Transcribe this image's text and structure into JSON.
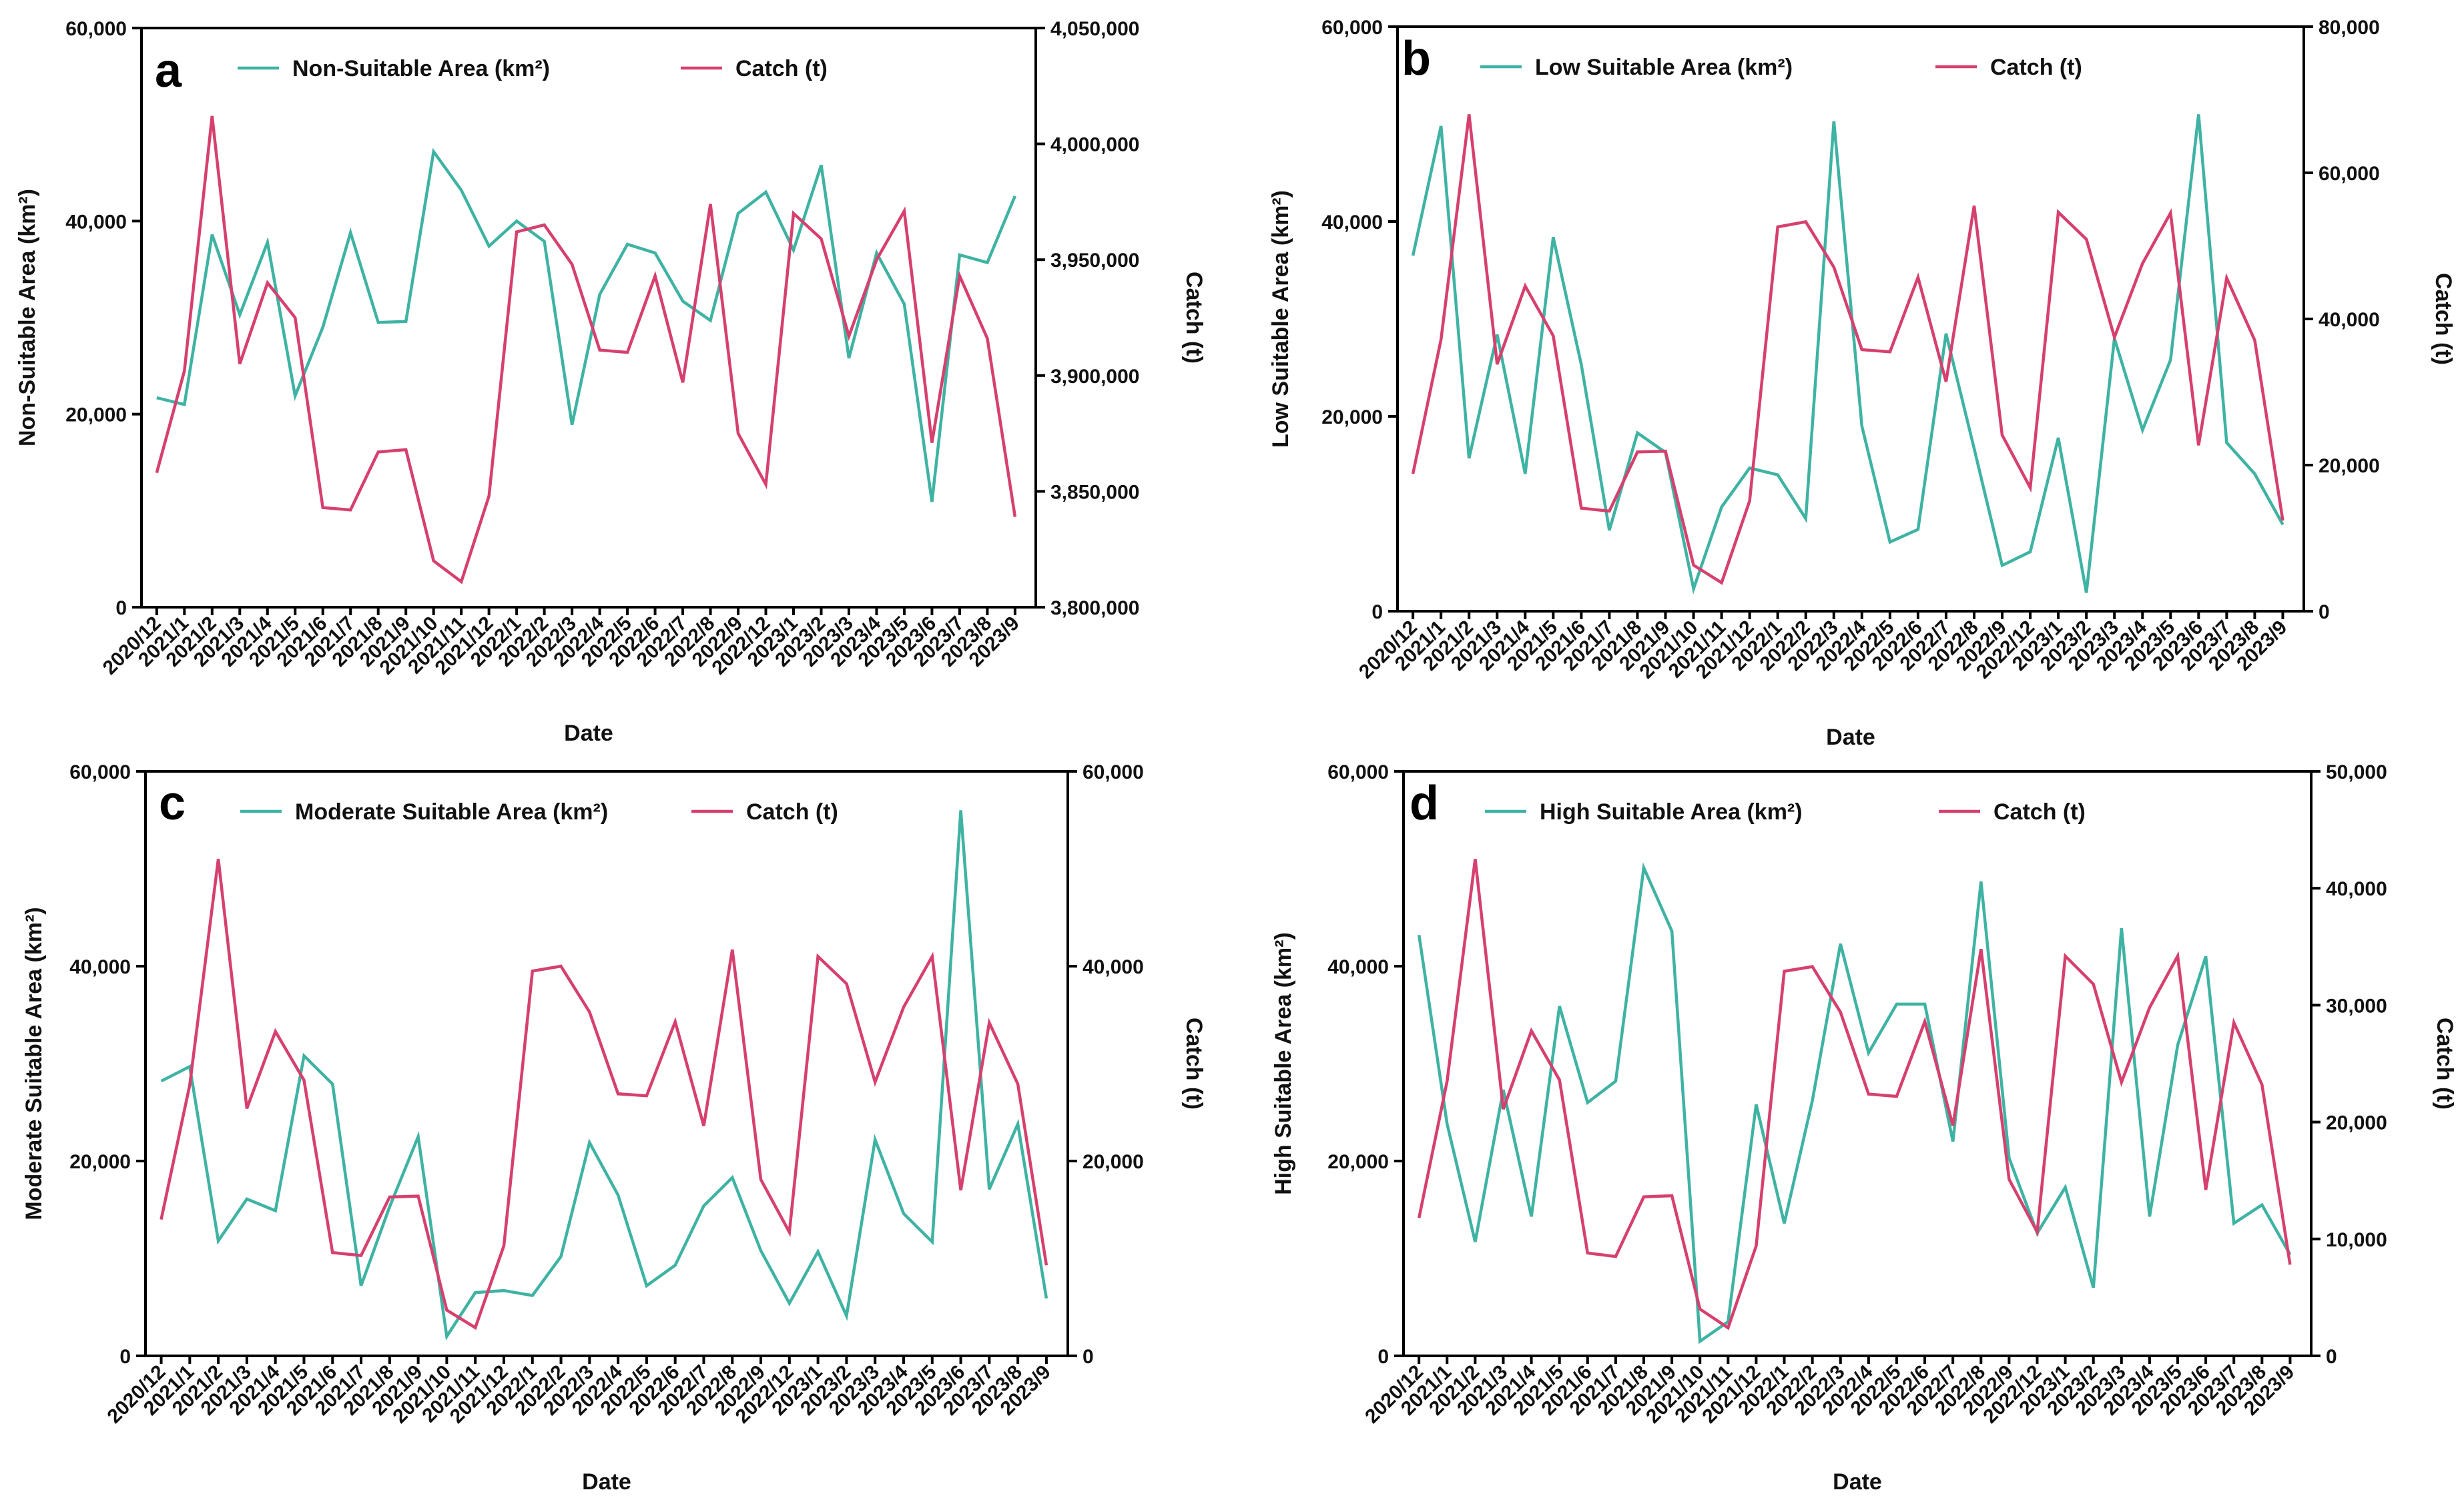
{
  "colors": {
    "area": "#3fb3a3",
    "catch": "#d6406e"
  },
  "chart_data": [
    {
      "type": "line",
      "panel": "a",
      "xlabel": "Date",
      "ylabel": "Non-Suitable Area (km²)",
      "y2label": "Catch (t)",
      "legend": [
        "Non-Suitable Area (km²)",
        "Catch (t)"
      ],
      "ylim": [
        0,
        60000
      ],
      "yticks": [
        "0",
        "20,000",
        "40,000",
        "60,000"
      ],
      "y2lim": [
        3800000,
        4050000
      ],
      "y2ticks": [
        "3,800,000",
        "3,850,000",
        "3,900,000",
        "3,950,000",
        "4,000,000",
        "4,050,000"
      ],
      "categories": [
        "2020/12",
        "2021/1",
        "2021/2",
        "2021/3",
        "2021/4",
        "2021/5",
        "2021/6",
        "2021/7",
        "2021/8",
        "2021/9",
        "2021/10",
        "2021/11",
        "2021/12",
        "2022/1",
        "2022/2",
        "2022/3",
        "2022/4",
        "2022/5",
        "2022/6",
        "2022/7",
        "2022/8",
        "2022/9",
        "2022/12",
        "2023/1",
        "2023/2",
        "2023/3",
        "2023/4",
        "2023/5",
        "2023/6",
        "2023/7",
        "2023/8",
        "2023/9"
      ],
      "series": [
        {
          "name": "Non-Suitable Area (km²)",
          "axis": "left",
          "values": [
            21700,
            21000,
            38600,
            30300,
            37800,
            21900,
            29000,
            38800,
            29500,
            29600,
            47200,
            43200,
            37400,
            40000,
            37900,
            18900,
            32400,
            37600,
            36700,
            31700,
            29700,
            40800,
            43000,
            37000,
            45800,
            25800,
            36700,
            31400,
            10900,
            36500,
            35700,
            42600
          ]
        },
        {
          "name": "Catch (t)",
          "axis": "right",
          "values": [
            3858000,
            3902000,
            4012000,
            3905000,
            3940000,
            3925000,
            3843000,
            3842000,
            3867000,
            3868000,
            3820000,
            3811000,
            3848000,
            3962000,
            3965000,
            3948000,
            3911000,
            3910000,
            3943000,
            3897000,
            3974000,
            3875000,
            3853000,
            3970000,
            3959000,
            3917000,
            3950000,
            3971000,
            3871000,
            3943000,
            3916000,
            3839000
          ]
        }
      ]
    },
    {
      "type": "line",
      "panel": "b",
      "xlabel": "Date",
      "ylabel": "Low Suitable Area (km²)",
      "y2label": "Catch (t)",
      "legend": [
        "Low Suitable Area (km²)",
        "Catch (t)"
      ],
      "ylim": [
        0,
        60000
      ],
      "yticks": [
        "0",
        "20,000",
        "40,000",
        "60,000"
      ],
      "y2lim": [
        0,
        80000
      ],
      "y2ticks": [
        "0",
        "20,000",
        "40,000",
        "60,000",
        "80,000"
      ],
      "categories": [
        "2020/12",
        "2021/1",
        "2021/2",
        "2021/3",
        "2021/4",
        "2021/5",
        "2021/6",
        "2021/7",
        "2021/8",
        "2021/9",
        "2021/10",
        "2021/11",
        "2021/12",
        "2022/1",
        "2022/2",
        "2022/3",
        "2022/4",
        "2022/5",
        "2022/6",
        "2022/7",
        "2022/8",
        "2022/9",
        "2022/12",
        "2023/1",
        "2023/2",
        "2023/3",
        "2023/4",
        "2023/5",
        "2023/6",
        "2023/7",
        "2023/8",
        "2023/9"
      ],
      "series": [
        {
          "name": "Low Suitable Area (km²)",
          "axis": "left",
          "values": [
            36500,
            49800,
            15700,
            28400,
            14100,
            38400,
            25300,
            8300,
            18300,
            16300,
            2300,
            10700,
            14700,
            14000,
            9500,
            50300,
            19000,
            7100,
            8400,
            28500,
            16700,
            4700,
            6100,
            17800,
            1900,
            28000,
            18600,
            25800,
            51000,
            17300,
            14100,
            8900
          ]
        },
        {
          "name": "Catch (t)",
          "axis": "right",
          "values": [
            18800,
            37200,
            68000,
            33800,
            44500,
            37700,
            14100,
            13700,
            21800,
            21900,
            6300,
            3900,
            15100,
            52600,
            53300,
            47100,
            35800,
            35500,
            45700,
            31400,
            55500,
            24100,
            16900,
            54600,
            50900,
            37500,
            47600,
            54500,
            22700,
            45600,
            37100,
            12400
          ]
        }
      ]
    },
    {
      "type": "line",
      "panel": "c",
      "xlabel": "Date",
      "ylabel": "Moderate Suitable Area (km²)",
      "y2label": "Catch (t)",
      "legend": [
        "Moderate Suitable Area (km²)",
        "Catch (t)"
      ],
      "ylim": [
        0,
        60000
      ],
      "yticks": [
        "0",
        "20,000",
        "40,000",
        "60,000"
      ],
      "y2lim": [
        0,
        60000
      ],
      "y2ticks": [
        "0",
        "20,000",
        "40,000",
        "60,000"
      ],
      "categories": [
        "2020/12",
        "2021/1",
        "2021/2",
        "2021/3",
        "2021/4",
        "2021/5",
        "2021/6",
        "2021/7",
        "2021/8",
        "2021/9",
        "2021/10",
        "2021/11",
        "2021/12",
        "2022/1",
        "2022/2",
        "2022/3",
        "2022/4",
        "2022/5",
        "2022/6",
        "2022/7",
        "2022/8",
        "2022/9",
        "2022/12",
        "2023/1",
        "2023/2",
        "2023/3",
        "2023/4",
        "2023/5",
        "2023/6",
        "2023/7",
        "2023/8",
        "2023/9"
      ],
      "series": [
        {
          "name": "Moderate Suitable Area (km²)",
          "axis": "left",
          "values": [
            28200,
            29700,
            11800,
            16100,
            14900,
            30800,
            27900,
            7200,
            15300,
            22500,
            2000,
            6500,
            6700,
            6200,
            10200,
            21900,
            16500,
            7200,
            9300,
            15400,
            18300,
            10800,
            5400,
            10700,
            4100,
            22200,
            14600,
            11700,
            56000,
            17100,
            23800,
            5900
          ]
        },
        {
          "name": "Catch (t)",
          "axis": "right",
          "values": [
            14000,
            27800,
            51000,
            25400,
            33300,
            28300,
            10600,
            10300,
            16300,
            16400,
            4700,
            2900,
            11300,
            39500,
            40000,
            35300,
            26900,
            26700,
            34300,
            23600,
            41700,
            18100,
            12700,
            41000,
            38200,
            28100,
            35800,
            41000,
            17000,
            34200,
            27900,
            9300
          ]
        }
      ]
    },
    {
      "type": "line",
      "panel": "d",
      "xlabel": "Date",
      "ylabel": "High Suitable Area (km²)",
      "y2label": "Catch (t)",
      "legend": [
        "High Suitable Area (km²)",
        "Catch (t)"
      ],
      "ylim": [
        0,
        60000
      ],
      "yticks": [
        "0",
        "20,000",
        "40,000",
        "60,000"
      ],
      "y2lim": [
        0,
        50000
      ],
      "y2ticks": [
        "0",
        "10,000",
        "20,000",
        "30,000",
        "40,000",
        "50,000"
      ],
      "categories": [
        "2020/12",
        "2021/1",
        "2021/2",
        "2021/3",
        "2021/4",
        "2021/5",
        "2021/6",
        "2021/7",
        "2021/8",
        "2021/9",
        "2021/10",
        "2021/11",
        "2021/12",
        "2022/1",
        "2022/2",
        "2022/3",
        "2022/4",
        "2022/5",
        "2022/6",
        "2022/7",
        "2022/8",
        "2022/9",
        "2022/12",
        "2023/1",
        "2023/2",
        "2023/3",
        "2023/4",
        "2023/5",
        "2023/6",
        "2023/7",
        "2023/8",
        "2023/9"
      ],
      "series": [
        {
          "name": "High Suitable Area (km²)",
          "axis": "left",
          "values": [
            43200,
            23800,
            11700,
            27300,
            14300,
            35900,
            26000,
            28200,
            50100,
            43600,
            1500,
            3500,
            25800,
            13600,
            26200,
            42300,
            31100,
            36100,
            36100,
            22000,
            48700,
            20300,
            12600,
            17300,
            7000,
            43900,
            14300,
            31900,
            41000,
            13600,
            15500,
            10400
          ]
        },
        {
          "name": "Catch (t)",
          "axis": "right",
          "values": [
            11800,
            23500,
            42500,
            21100,
            27800,
            23600,
            8800,
            8500,
            13600,
            13700,
            4000,
            2400,
            9400,
            32900,
            33300,
            29400,
            22400,
            22200,
            28600,
            19700,
            34800,
            15100,
            10600,
            34200,
            31800,
            23400,
            29800,
            34200,
            14200,
            28500,
            23200,
            7800
          ]
        }
      ]
    }
  ]
}
